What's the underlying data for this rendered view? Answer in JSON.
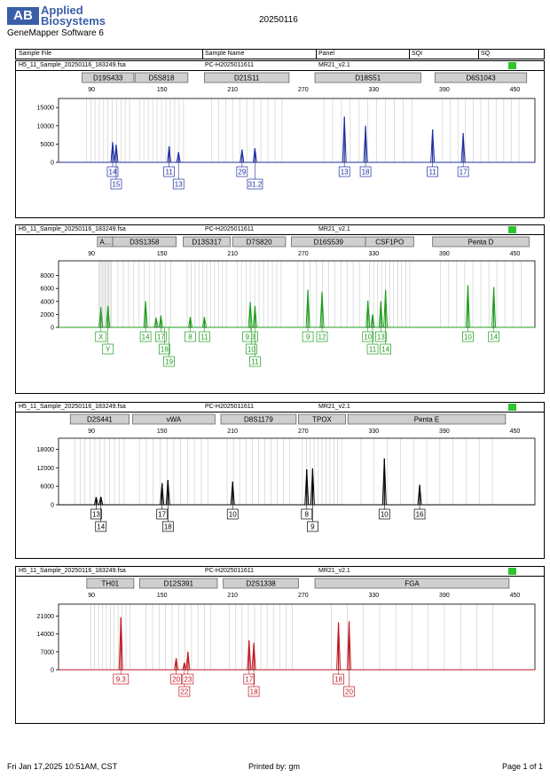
{
  "brand": {
    "logo_letters": "AB",
    "line1": "Applied",
    "line2": "Biosystems"
  },
  "software": "GeneMapper Software 6",
  "report_date": "20250116",
  "table_header": {
    "sample_file": "Sample File",
    "sample_name": "Sample Name",
    "panel": "Panel",
    "sqi": "SQI",
    "sq": "SQ"
  },
  "colors": {
    "blue": "#1f2fa0",
    "green": "#1e9e1e",
    "black": "#000000",
    "red": "#c0181f",
    "sq_ok": "#2ec52e",
    "bin": "#c8c8c8"
  },
  "footer": {
    "left": "Fri Jan 17,2025 10:51AM, CST",
    "center": "Printed by: gm",
    "right": "Page 1 of 1"
  },
  "panels": [
    {
      "sample_file": "H5_11_Sample_20250116_183249.fsa",
      "sample_name": "PC-H2025011611",
      "panel": "MR21_v2.1",
      "dye": "blue",
      "x_ticks": [
        "90",
        "150",
        "210",
        "270",
        "330",
        "390",
        "450"
      ],
      "y_ticks": [
        "0",
        "5000",
        "10000",
        "15000"
      ],
      "ymax": 17000,
      "markers": [
        {
          "name": "D19S433",
          "from": 82,
          "to": 126
        },
        {
          "name": "D5S818",
          "from": 127,
          "to": 172
        },
        {
          "name": "D21S11",
          "from": 186,
          "to": 258
        },
        {
          "name": "D18S51",
          "from": 280,
          "to": 370
        },
        {
          "name": "D6S1043",
          "from": 382,
          "to": 460
        }
      ],
      "peaks": [
        {
          "bp": 108,
          "h": 5500
        },
        {
          "bp": 111,
          "h": 4800
        },
        {
          "bp": 156,
          "h": 4400
        },
        {
          "bp": 164,
          "h": 2800
        },
        {
          "bp": 218,
          "h": 3500
        },
        {
          "bp": 229,
          "h": 3800
        },
        {
          "bp": 305,
          "h": 12500
        },
        {
          "bp": 323,
          "h": 10000
        },
        {
          "bp": 380,
          "h": 9000
        },
        {
          "bp": 406,
          "h": 8000
        }
      ],
      "labels": [
        {
          "bp": 108,
          "text": "14",
          "row": 0
        },
        {
          "bp": 111,
          "text": "15",
          "row": 1
        },
        {
          "bp": 156,
          "text": "11",
          "row": 0
        },
        {
          "bp": 164,
          "text": "13",
          "row": 1
        },
        {
          "bp": 218,
          "text": "29",
          "row": 0
        },
        {
          "bp": 229,
          "text": "31.2",
          "row": 1
        },
        {
          "bp": 305,
          "text": "13",
          "row": 0
        },
        {
          "bp": 323,
          "text": "18",
          "row": 0
        },
        {
          "bp": 380,
          "text": "11",
          "row": 0
        },
        {
          "bp": 406,
          "text": "17",
          "row": 0
        }
      ]
    },
    {
      "sample_file": "H5_11_Sample_20250116_183249.fsa",
      "sample_name": "PC-H2025011611",
      "panel": "MR21_v2.1",
      "dye": "green",
      "x_ticks": [
        "90",
        "150",
        "210",
        "270",
        "330",
        "390",
        "450"
      ],
      "y_ticks": [
        "0",
        "2000",
        "4000",
        "6000",
        "8000"
      ],
      "ymax": 10000,
      "markers": [
        {
          "name": "A...",
          "from": 95,
          "to": 108
        },
        {
          "name": "D3S1358",
          "from": 108,
          "to": 162
        },
        {
          "name": "D13S317",
          "from": 168,
          "to": 208
        },
        {
          "name": "D7S820",
          "from": 210,
          "to": 255
        },
        {
          "name": "D16S539",
          "from": 260,
          "to": 323
        },
        {
          "name": "CSF1PO",
          "from": 323,
          "to": 364
        },
        {
          "name": "Penta D",
          "from": 380,
          "to": 462
        }
      ],
      "peaks": [
        {
          "bp": 98,
          "h": 3100
        },
        {
          "bp": 104,
          "h": 3300
        },
        {
          "bp": 136,
          "h": 4000
        },
        {
          "bp": 145,
          "h": 1500
        },
        {
          "bp": 149,
          "h": 1800
        },
        {
          "bp": 174,
          "h": 1600
        },
        {
          "bp": 186,
          "h": 1600
        },
        {
          "bp": 225,
          "h": 3900
        },
        {
          "bp": 229,
          "h": 3300
        },
        {
          "bp": 274,
          "h": 5800
        },
        {
          "bp": 286,
          "h": 5500
        },
        {
          "bp": 325,
          "h": 4100
        },
        {
          "bp": 329,
          "h": 2000
        },
        {
          "bp": 336,
          "h": 4000
        },
        {
          "bp": 340,
          "h": 5800
        },
        {
          "bp": 410,
          "h": 6500
        },
        {
          "bp": 432,
          "h": 6200
        }
      ],
      "labels": [
        {
          "bp": 98,
          "text": "X",
          "row": 0
        },
        {
          "bp": 104,
          "text": "Y",
          "row": 1
        },
        {
          "bp": 136,
          "text": "14",
          "row": 0
        },
        {
          "bp": 149,
          "text": "17",
          "row": 0
        },
        {
          "bp": 152,
          "text": "18",
          "row": 1
        },
        {
          "bp": 156,
          "text": "19",
          "row": 2
        },
        {
          "bp": 174,
          "text": "8",
          "row": 0
        },
        {
          "bp": 186,
          "text": "11",
          "row": 0
        },
        {
          "bp": 225,
          "text": "9.3",
          "row": 0
        },
        {
          "bp": 226,
          "text": "10",
          "row": 1
        },
        {
          "bp": 229,
          "text": "11",
          "row": 2
        },
        {
          "bp": 274,
          "text": "9",
          "row": 0
        },
        {
          "bp": 286,
          "text": "12",
          "row": 0
        },
        {
          "bp": 325,
          "text": "10",
          "row": 0
        },
        {
          "bp": 329,
          "text": "11",
          "row": 1
        },
        {
          "bp": 336,
          "text": "13",
          "row": 0
        },
        {
          "bp": 340,
          "text": "14",
          "row": 1
        },
        {
          "bp": 410,
          "text": "10",
          "row": 0
        },
        {
          "bp": 432,
          "text": "14",
          "row": 0
        }
      ]
    },
    {
      "sample_file": "H5_11_Sample_20250116_183249.fsa",
      "sample_name": "PC-H2025011611",
      "panel": "MR21_v2.1",
      "dye": "black",
      "x_ticks": [
        "90",
        "150",
        "210",
        "270",
        "330",
        "390",
        "450"
      ],
      "y_ticks": [
        "0",
        "6000",
        "12000",
        "18000"
      ],
      "ymax": 21000,
      "markers": [
        {
          "name": "D2S441",
          "from": 72,
          "to": 122
        },
        {
          "name": "vWA",
          "from": 125,
          "to": 195
        },
        {
          "name": "D8S1179",
          "from": 200,
          "to": 264
        },
        {
          "name": "TPOX",
          "from": 266,
          "to": 306
        },
        {
          "name": "Penta E",
          "from": 308,
          "to": 442
        }
      ],
      "peaks": [
        {
          "bp": 94,
          "h": 2500
        },
        {
          "bp": 98,
          "h": 2600
        },
        {
          "bp": 150,
          "h": 7000
        },
        {
          "bp": 155,
          "h": 8000
        },
        {
          "bp": 210,
          "h": 7500
        },
        {
          "bp": 273,
          "h": 11500
        },
        {
          "bp": 278,
          "h": 11800
        },
        {
          "bp": 339,
          "h": 15000
        },
        {
          "bp": 369,
          "h": 6500
        }
      ],
      "labels": [
        {
          "bp": 94,
          "text": "13",
          "row": 0
        },
        {
          "bp": 98,
          "text": "14",
          "row": 1
        },
        {
          "bp": 150,
          "text": "17",
          "row": 0
        },
        {
          "bp": 155,
          "text": "18",
          "row": 1
        },
        {
          "bp": 210,
          "text": "10",
          "row": 0
        },
        {
          "bp": 273,
          "text": "8",
          "row": 0
        },
        {
          "bp": 278,
          "text": "9",
          "row": 1
        },
        {
          "bp": 339,
          "text": "10",
          "row": 0
        },
        {
          "bp": 369,
          "text": "16",
          "row": 0
        }
      ]
    },
    {
      "sample_file": "H5_11_Sample_20250116_183249.fsa",
      "sample_name": "PC-H2025011611",
      "panel": "MR21_v2.1",
      "dye": "red",
      "x_ticks": [
        "90",
        "150",
        "210",
        "270",
        "330",
        "390",
        "450"
      ],
      "y_ticks": [
        "0",
        "7000",
        "14000",
        "21000"
      ],
      "ymax": 25000,
      "markers": [
        {
          "name": "TH01",
          "from": 86,
          "to": 126
        },
        {
          "name": "D12S391",
          "from": 131,
          "to": 197
        },
        {
          "name": "D2S1338",
          "from": 202,
          "to": 266
        },
        {
          "name": "FGA",
          "from": 280,
          "to": 445
        }
      ],
      "peaks": [
        {
          "bp": 115,
          "h": 20500
        },
        {
          "bp": 162,
          "h": 4500
        },
        {
          "bp": 169,
          "h": 2800
        },
        {
          "bp": 172,
          "h": 7000
        },
        {
          "bp": 224,
          "h": 11500
        },
        {
          "bp": 228,
          "h": 10500
        },
        {
          "bp": 300,
          "h": 18500
        },
        {
          "bp": 309,
          "h": 19000
        }
      ],
      "labels": [
        {
          "bp": 115,
          "text": "9.3",
          "row": 0
        },
        {
          "bp": 162,
          "text": "20",
          "row": 0
        },
        {
          "bp": 169,
          "text": "22",
          "row": 1
        },
        {
          "bp": 172,
          "text": "23",
          "row": 0
        },
        {
          "bp": 224,
          "text": "17",
          "row": 0
        },
        {
          "bp": 228,
          "text": "18",
          "row": 1
        },
        {
          "bp": 300,
          "text": "18",
          "row": 0
        },
        {
          "bp": 309,
          "text": "20",
          "row": 1
        }
      ]
    }
  ]
}
